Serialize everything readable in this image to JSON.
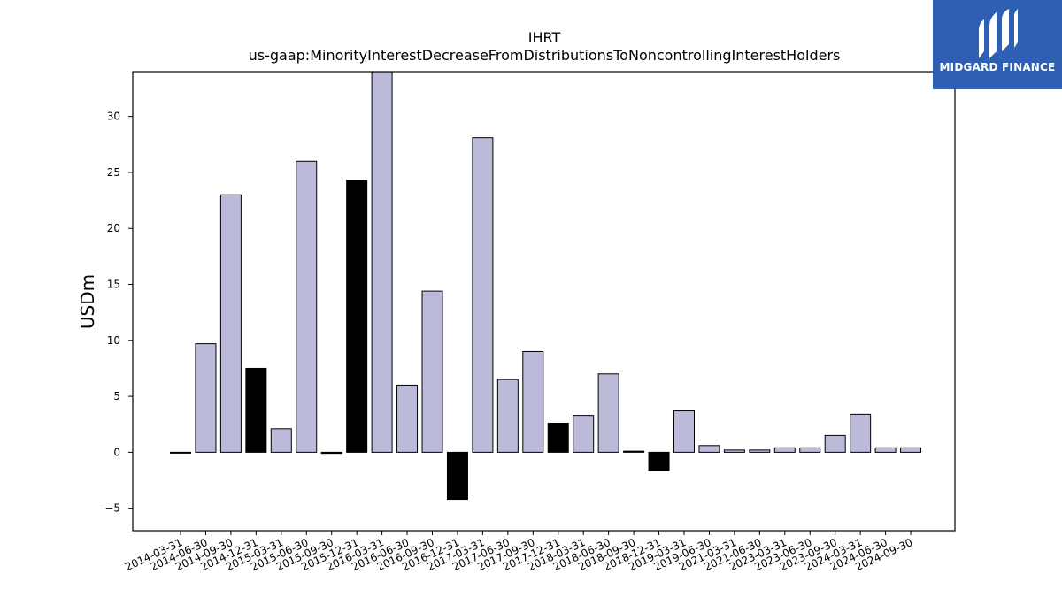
{
  "chart_data": {
    "type": "bar",
    "title": "IHRT",
    "subtitle": "us-gaap:MinorityInterestDecreaseFromDistributionsToNoncontrollingInterestHolders",
    "ylabel": "USDm",
    "xlabel": "",
    "ylim": [
      -7,
      34
    ],
    "yticks": [
      -5,
      0,
      5,
      10,
      15,
      20,
      25,
      30
    ],
    "ytick_labels": [
      "−5",
      "0",
      "5",
      "10",
      "15",
      "20",
      "25",
      "30"
    ],
    "grid": false,
    "legend": "none",
    "colors": {
      "positive": "#bcbad9",
      "negative": "#000000",
      "edge": "#000000"
    },
    "categories": [
      "2014-03-31",
      "2014-06-30",
      "2014-09-30",
      "2014-12-31",
      "2015-03-31",
      "2015-06-30",
      "2015-09-30",
      "2015-12-31",
      "2016-03-31",
      "2016-06-30",
      "2016-09-30",
      "2016-12-31",
      "2017-03-31",
      "2017-06-30",
      "2017-09-30",
      "2017-12-31",
      "2018-03-31",
      "2018-06-30",
      "2018-09-30",
      "2018-12-31",
      "2019-03-31",
      "2019-06-30",
      "2021-03-31",
      "2021-06-30",
      "2023-03-31",
      "2023-06-30",
      "2023-09-30",
      "2024-03-31",
      "2024-06-30",
      "2024-09-30"
    ],
    "values": [
      0.0,
      9.7,
      23.0,
      7.5,
      2.1,
      26.0,
      -0.1,
      24.3,
      34.5,
      6.0,
      14.4,
      -4.2,
      28.1,
      6.5,
      9.0,
      2.6,
      3.3,
      7.0,
      0.1,
      -1.6,
      3.7,
      0.6,
      0.2,
      0.2,
      0.4,
      0.4,
      1.5,
      3.4,
      0.4,
      0.4
    ],
    "bar_color_group": [
      "positive",
      "positive",
      "positive",
      "negative",
      "positive",
      "positive",
      "negative",
      "negative",
      "positive",
      "positive",
      "positive",
      "negative",
      "positive",
      "positive",
      "positive",
      "negative",
      "positive",
      "positive",
      "negative",
      "negative",
      "positive",
      "positive",
      "positive",
      "positive",
      "positive",
      "positive",
      "positive",
      "positive",
      "positive",
      "positive"
    ]
  },
  "logo": {
    "text": "MIDGARD FINANCE",
    "background": "#2f5fb3"
  }
}
